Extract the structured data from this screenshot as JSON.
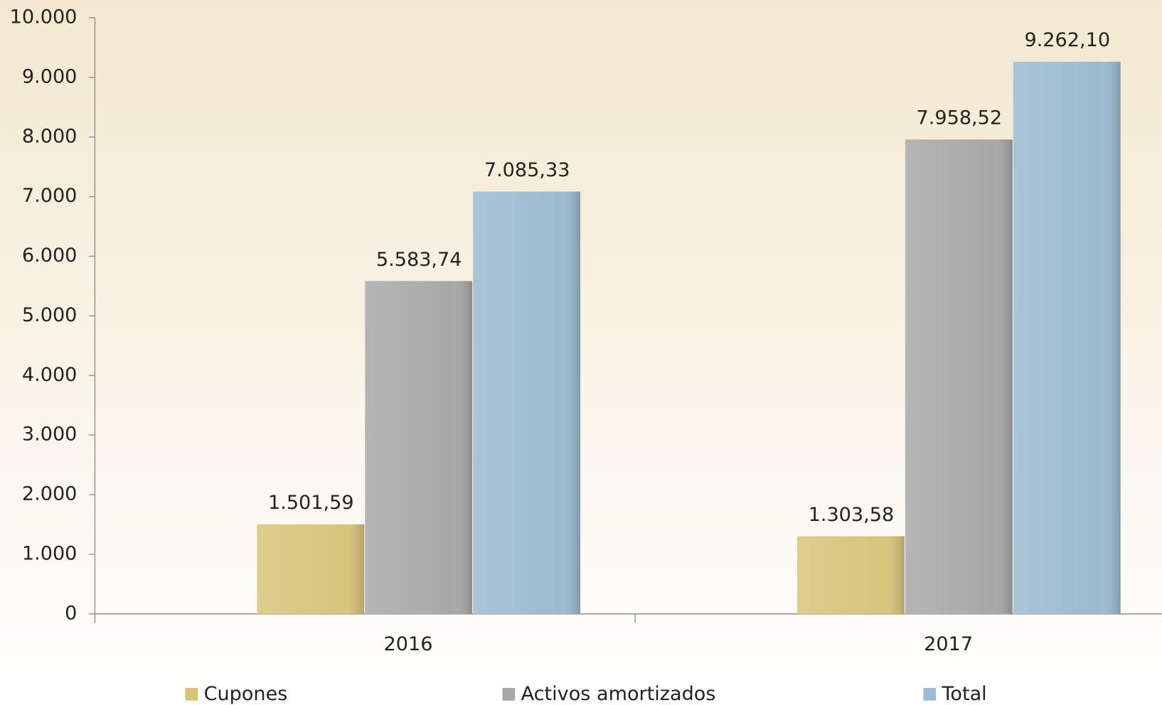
{
  "chart_data": {
    "type": "bar",
    "categories": [
      "2016",
      "2017"
    ],
    "series": [
      {
        "name": "Cupones",
        "color": "#d9c47c",
        "values": [
          1501.59,
          1303.58
        ],
        "value_labels": [
          "1.501,59",
          "1.303,58"
        ]
      },
      {
        "name": "Activos amortizados",
        "color": "#a8a8a8",
        "values": [
          5583.74,
          7958.52
        ],
        "value_labels": [
          "5.583,74",
          "7.958,52"
        ]
      },
      {
        "name": "Total",
        "color": "#9bbbd0",
        "values": [
          7085.33,
          9262.1
        ],
        "value_labels": [
          "7.085,33",
          "9.262,10"
        ]
      }
    ],
    "ylim": [
      0,
      10000
    ],
    "yticks": [
      0,
      {
        "value": 1000,
        "label": "1.000"
      },
      {
        "value": 2000,
        "label": "2.000"
      },
      {
        "value": 3000,
        "label": "3.000"
      },
      {
        "value": 4000,
        "label": "4.000"
      },
      {
        "value": 5000,
        "label": "5.000"
      },
      {
        "value": 6000,
        "label": "6.000"
      },
      {
        "value": 7000,
        "label": "7.000"
      },
      {
        "value": 8000,
        "label": "8.000"
      },
      {
        "value": 9000,
        "label": "9.000"
      },
      {
        "value": 10000,
        "label": "10.000"
      }
    ],
    "legend": "bottom"
  }
}
